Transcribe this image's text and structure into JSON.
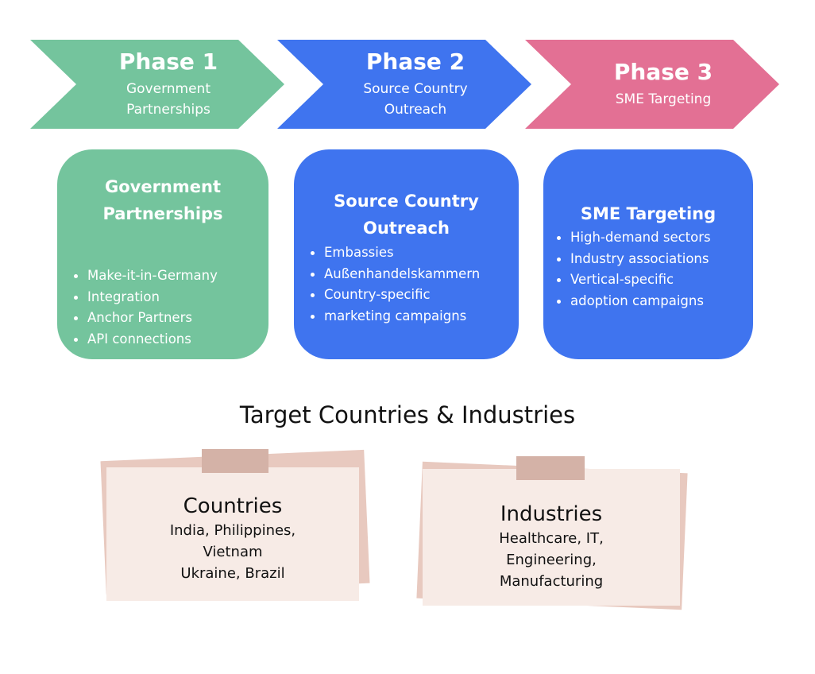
{
  "colors": {
    "green": "#74c49d",
    "blue": "#3f74ef",
    "pink": "#e37094",
    "note_paper": "#f7ebe6",
    "note_shadow": "#e8c9bf",
    "tape": "#d4b2a7"
  },
  "phases": [
    {
      "title": "Phase 1",
      "subtitle_lines": [
        "Government",
        "Partnerships"
      ]
    },
    {
      "title": "Phase 2",
      "subtitle_lines": [
        "Source Country",
        "Outreach"
      ]
    },
    {
      "title": "Phase 3",
      "subtitle_lines": [
        "SME Targeting"
      ]
    }
  ],
  "cards": [
    {
      "title_lines": [
        "Government",
        "Partnerships"
      ],
      "items": [
        "Make-it-in-Germany",
        "Integration",
        "Anchor Partners",
        "API connections"
      ]
    },
    {
      "title_lines": [
        "Source Country",
        "Outreach"
      ],
      "items": [
        "Embassies",
        "Außenhandelskammern",
        "Country-specific",
        "marketing campaigns"
      ]
    },
    {
      "title_lines": [
        "SME Targeting"
      ],
      "items": [
        "High-demand sectors",
        "Industry associations",
        "Vertical-specific",
        "adoption campaigns"
      ]
    }
  ],
  "section_title": "Target Countries & Industries",
  "notes": [
    {
      "title": "Countries",
      "lines": [
        "India, Philippines,",
        "Vietnam",
        "Ukraine, Brazil"
      ]
    },
    {
      "title": "Industries",
      "lines": [
        "Healthcare, IT,",
        "Engineering,",
        "Manufacturing"
      ]
    }
  ]
}
